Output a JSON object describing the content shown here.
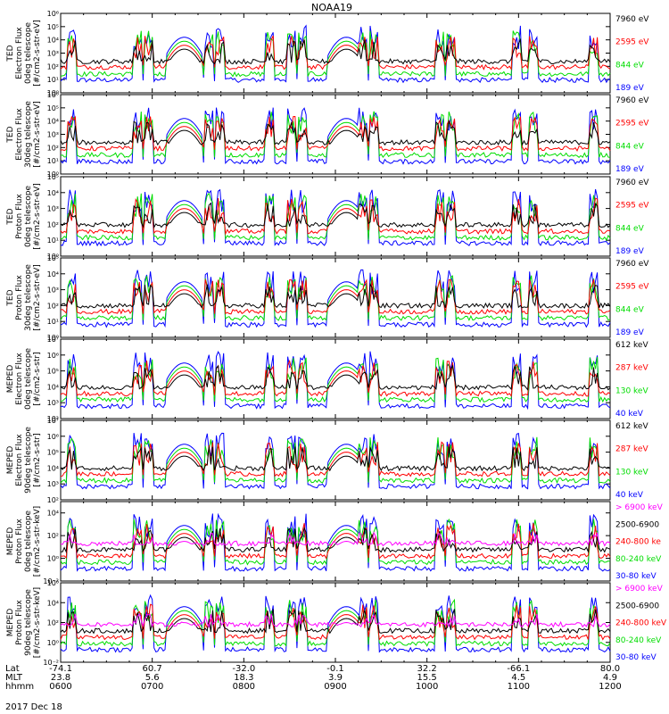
{
  "chart_data": {
    "type": "line",
    "title": "NOAA19",
    "date_label": "2017 Dec 18",
    "x_axis": {
      "rows": [
        {
          "label": "Lat",
          "values": [
            "-74.1",
            "60.7",
            "-32.0",
            "-0.1",
            "32.2",
            "-66.1",
            "80.0"
          ]
        },
        {
          "label": "MLT",
          "values": [
            "23.8",
            "5.6",
            "18.3",
            "3.9",
            "15.5",
            "4.5",
            "4.9"
          ]
        },
        {
          "label": "hhmm",
          "values": [
            "0600",
            "0700",
            "0800",
            "0900",
            "1000",
            "1100",
            "1200"
          ]
        }
      ],
      "time_range_hours": [
        6,
        12
      ]
    },
    "panels": [
      {
        "ylabel": [
          "TED",
          "Electron Flux",
          "0deg telescope",
          "[#/cm2-s-str-eV]"
        ],
        "y_log_range": [
          0,
          6
        ],
        "ticks": [
          "10⁰",
          "10¹",
          "10²",
          "10³",
          "10⁴",
          "10⁵",
          "10⁶"
        ],
        "legend": [
          {
            "label": "7960 eV",
            "color": "#000000"
          },
          {
            "label": "2595 eV",
            "color": "#ff0000"
          },
          {
            "label": "844 eV",
            "color": "#00dd00"
          },
          {
            "label": "189 eV",
            "color": "#0000ff"
          }
        ]
      },
      {
        "ylabel": [
          "TED",
          "Electron Flux",
          "30deg telescope",
          "[#/cm2-s-str-eV]"
        ],
        "y_log_range": [
          0,
          6
        ],
        "ticks": [
          "10⁰",
          "10¹",
          "10²",
          "10³",
          "10⁴",
          "10⁵",
          "10⁶"
        ],
        "legend": [
          {
            "label": "7960 eV",
            "color": "#000000"
          },
          {
            "label": "2595 eV",
            "color": "#ff0000"
          },
          {
            "label": "844 eV",
            "color": "#00dd00"
          },
          {
            "label": "189 eV",
            "color": "#0000ff"
          }
        ]
      },
      {
        "ylabel": [
          "TED",
          "Proton Flux",
          "0deg telescope",
          "[#/cm2-s-str-eV]"
        ],
        "y_log_range": [
          0,
          5
        ],
        "ticks": [
          "10⁰",
          "10¹",
          "10²",
          "10³",
          "10⁴",
          "10⁵"
        ],
        "legend": [
          {
            "label": "7960 eV",
            "color": "#000000"
          },
          {
            "label": "2595 eV",
            "color": "#ff0000"
          },
          {
            "label": "844 eV",
            "color": "#00dd00"
          },
          {
            "label": "189 eV",
            "color": "#0000ff"
          }
        ]
      },
      {
        "ylabel": [
          "TED",
          "Proton Flux",
          "30deg telescope",
          "[#/cm2-s-str-eV]"
        ],
        "y_log_range": [
          0,
          5
        ],
        "ticks": [
          "10⁰",
          "10¹",
          "10²",
          "10³",
          "10⁴",
          "10⁵"
        ],
        "legend": [
          {
            "label": "7960 eV",
            "color": "#000000"
          },
          {
            "label": "2595 eV",
            "color": "#ff0000"
          },
          {
            "label": "844 eV",
            "color": "#00dd00"
          },
          {
            "label": "189 eV",
            "color": "#0000ff"
          }
        ]
      },
      {
        "ylabel": [
          "MEPED",
          "Electron Flux",
          "0deg telescope",
          "[#/cm2-s-str]"
        ],
        "y_log_range": [
          2,
          7
        ],
        "ticks": [
          "10²",
          "10³",
          "10⁴",
          "10⁵",
          "10⁶",
          "10⁷"
        ],
        "legend": [
          {
            "label": "612 keV",
            "color": "#000000"
          },
          {
            "label": "287 keV",
            "color": "#ff0000"
          },
          {
            "label": "130 keV",
            "color": "#00dd00"
          },
          {
            "label": "40 keV",
            "color": "#0000ff"
          }
        ]
      },
      {
        "ylabel": [
          "MEPED",
          "Electron Flux",
          "90deg telescope",
          "[#/cm2-s-str]"
        ],
        "y_log_range": [
          2,
          7
        ],
        "ticks": [
          "10²",
          "10³",
          "10⁴",
          "10⁵",
          "10⁶",
          "10⁷"
        ],
        "legend": [
          {
            "label": "612 keV",
            "color": "#000000"
          },
          {
            "label": "287 keV",
            "color": "#ff0000"
          },
          {
            "label": "130 keV",
            "color": "#00dd00"
          },
          {
            "label": "40 keV",
            "color": "#0000ff"
          }
        ]
      },
      {
        "ylabel": [
          "MEPED",
          "Proton Flux",
          "0deg telescope",
          "[#/cm2-s-str-keV]"
        ],
        "y_log_range": [
          -2,
          5
        ],
        "ticks": [
          "10⁻²",
          "10⁰",
          "10²",
          "10⁴"
        ],
        "tick_exponents": [
          -2,
          0,
          2,
          4
        ],
        "legend": [
          {
            "label": "> 6900 keV",
            "color": "#ff00ff"
          },
          {
            "label": "2500-6900",
            "color": "#000000"
          },
          {
            "label": "240-800 ke",
            "color": "#ff0000"
          },
          {
            "label": "80-240 keV",
            "color": "#00dd00"
          },
          {
            "label": "30-80 keV",
            "color": "#0000ff"
          }
        ]
      },
      {
        "ylabel": [
          "MEPED",
          "Proton Flux",
          "90deg telescope",
          "[#/cm2-s-str-keV]"
        ],
        "y_log_range": [
          -2,
          6
        ],
        "ticks": [
          "10⁻²",
          "10⁰",
          "10²",
          "10⁴",
          "10⁶"
        ],
        "tick_exponents": [
          -2,
          0,
          2,
          4,
          6
        ],
        "legend": [
          {
            "label": "> 6900 keV",
            "color": "#ff00ff"
          },
          {
            "label": "2500-6900",
            "color": "#000000"
          },
          {
            "label": "240-800 keV",
            "color": "#ff0000"
          },
          {
            "label": "80-240 keV",
            "color": "#00dd00"
          },
          {
            "label": "30-80 keV",
            "color": "#0000ff"
          }
        ]
      }
    ]
  }
}
